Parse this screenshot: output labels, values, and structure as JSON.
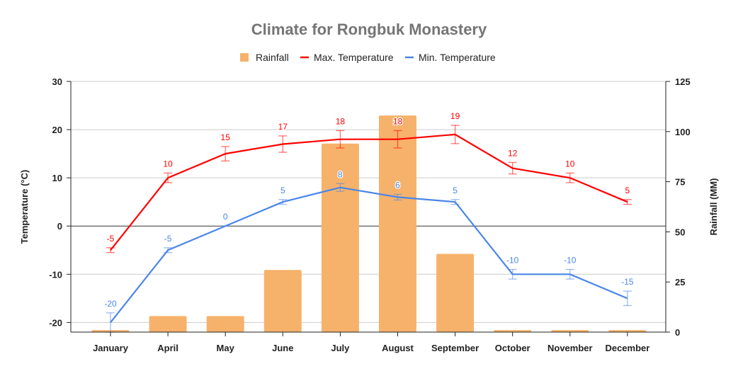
{
  "chart_data": {
    "type": "bar+line",
    "title": "Climate for Rongbuk Monastery",
    "categories": [
      "January",
      "April",
      "May",
      "June",
      "July",
      "August",
      "September",
      "October",
      "November",
      "December"
    ],
    "series": [
      {
        "name": "Rainfall",
        "type": "bar",
        "axis": "right",
        "color": "#f6b26b",
        "values": [
          1,
          8,
          8,
          31,
          94,
          108,
          39,
          1,
          1,
          1
        ]
      },
      {
        "name": "Max. Temperature",
        "type": "line",
        "axis": "left",
        "color": "#ff0000",
        "values": [
          -5,
          10,
          15,
          17,
          18,
          18,
          19,
          12,
          10,
          5
        ],
        "error_percent": 10,
        "data_labels": true
      },
      {
        "name": "Min. Temperature",
        "type": "line",
        "axis": "left",
        "color": "#4a86e8",
        "values": [
          -20,
          -5,
          0,
          5,
          8,
          6,
          5,
          -10,
          -10,
          -15
        ],
        "error_percent": 10,
        "data_labels": true
      }
    ],
    "ylabel_left": "Temperature (°C)",
    "ylabel_right": "Rainfall (MM)",
    "ylim_left": [
      -22,
      30
    ],
    "yticks_left": [
      -20,
      -10,
      0,
      10,
      20,
      30
    ],
    "ylim_right": [
      0,
      125
    ],
    "yticks_right": [
      0,
      25,
      50,
      75,
      100,
      125
    ],
    "grid": true,
    "legend": "top"
  }
}
